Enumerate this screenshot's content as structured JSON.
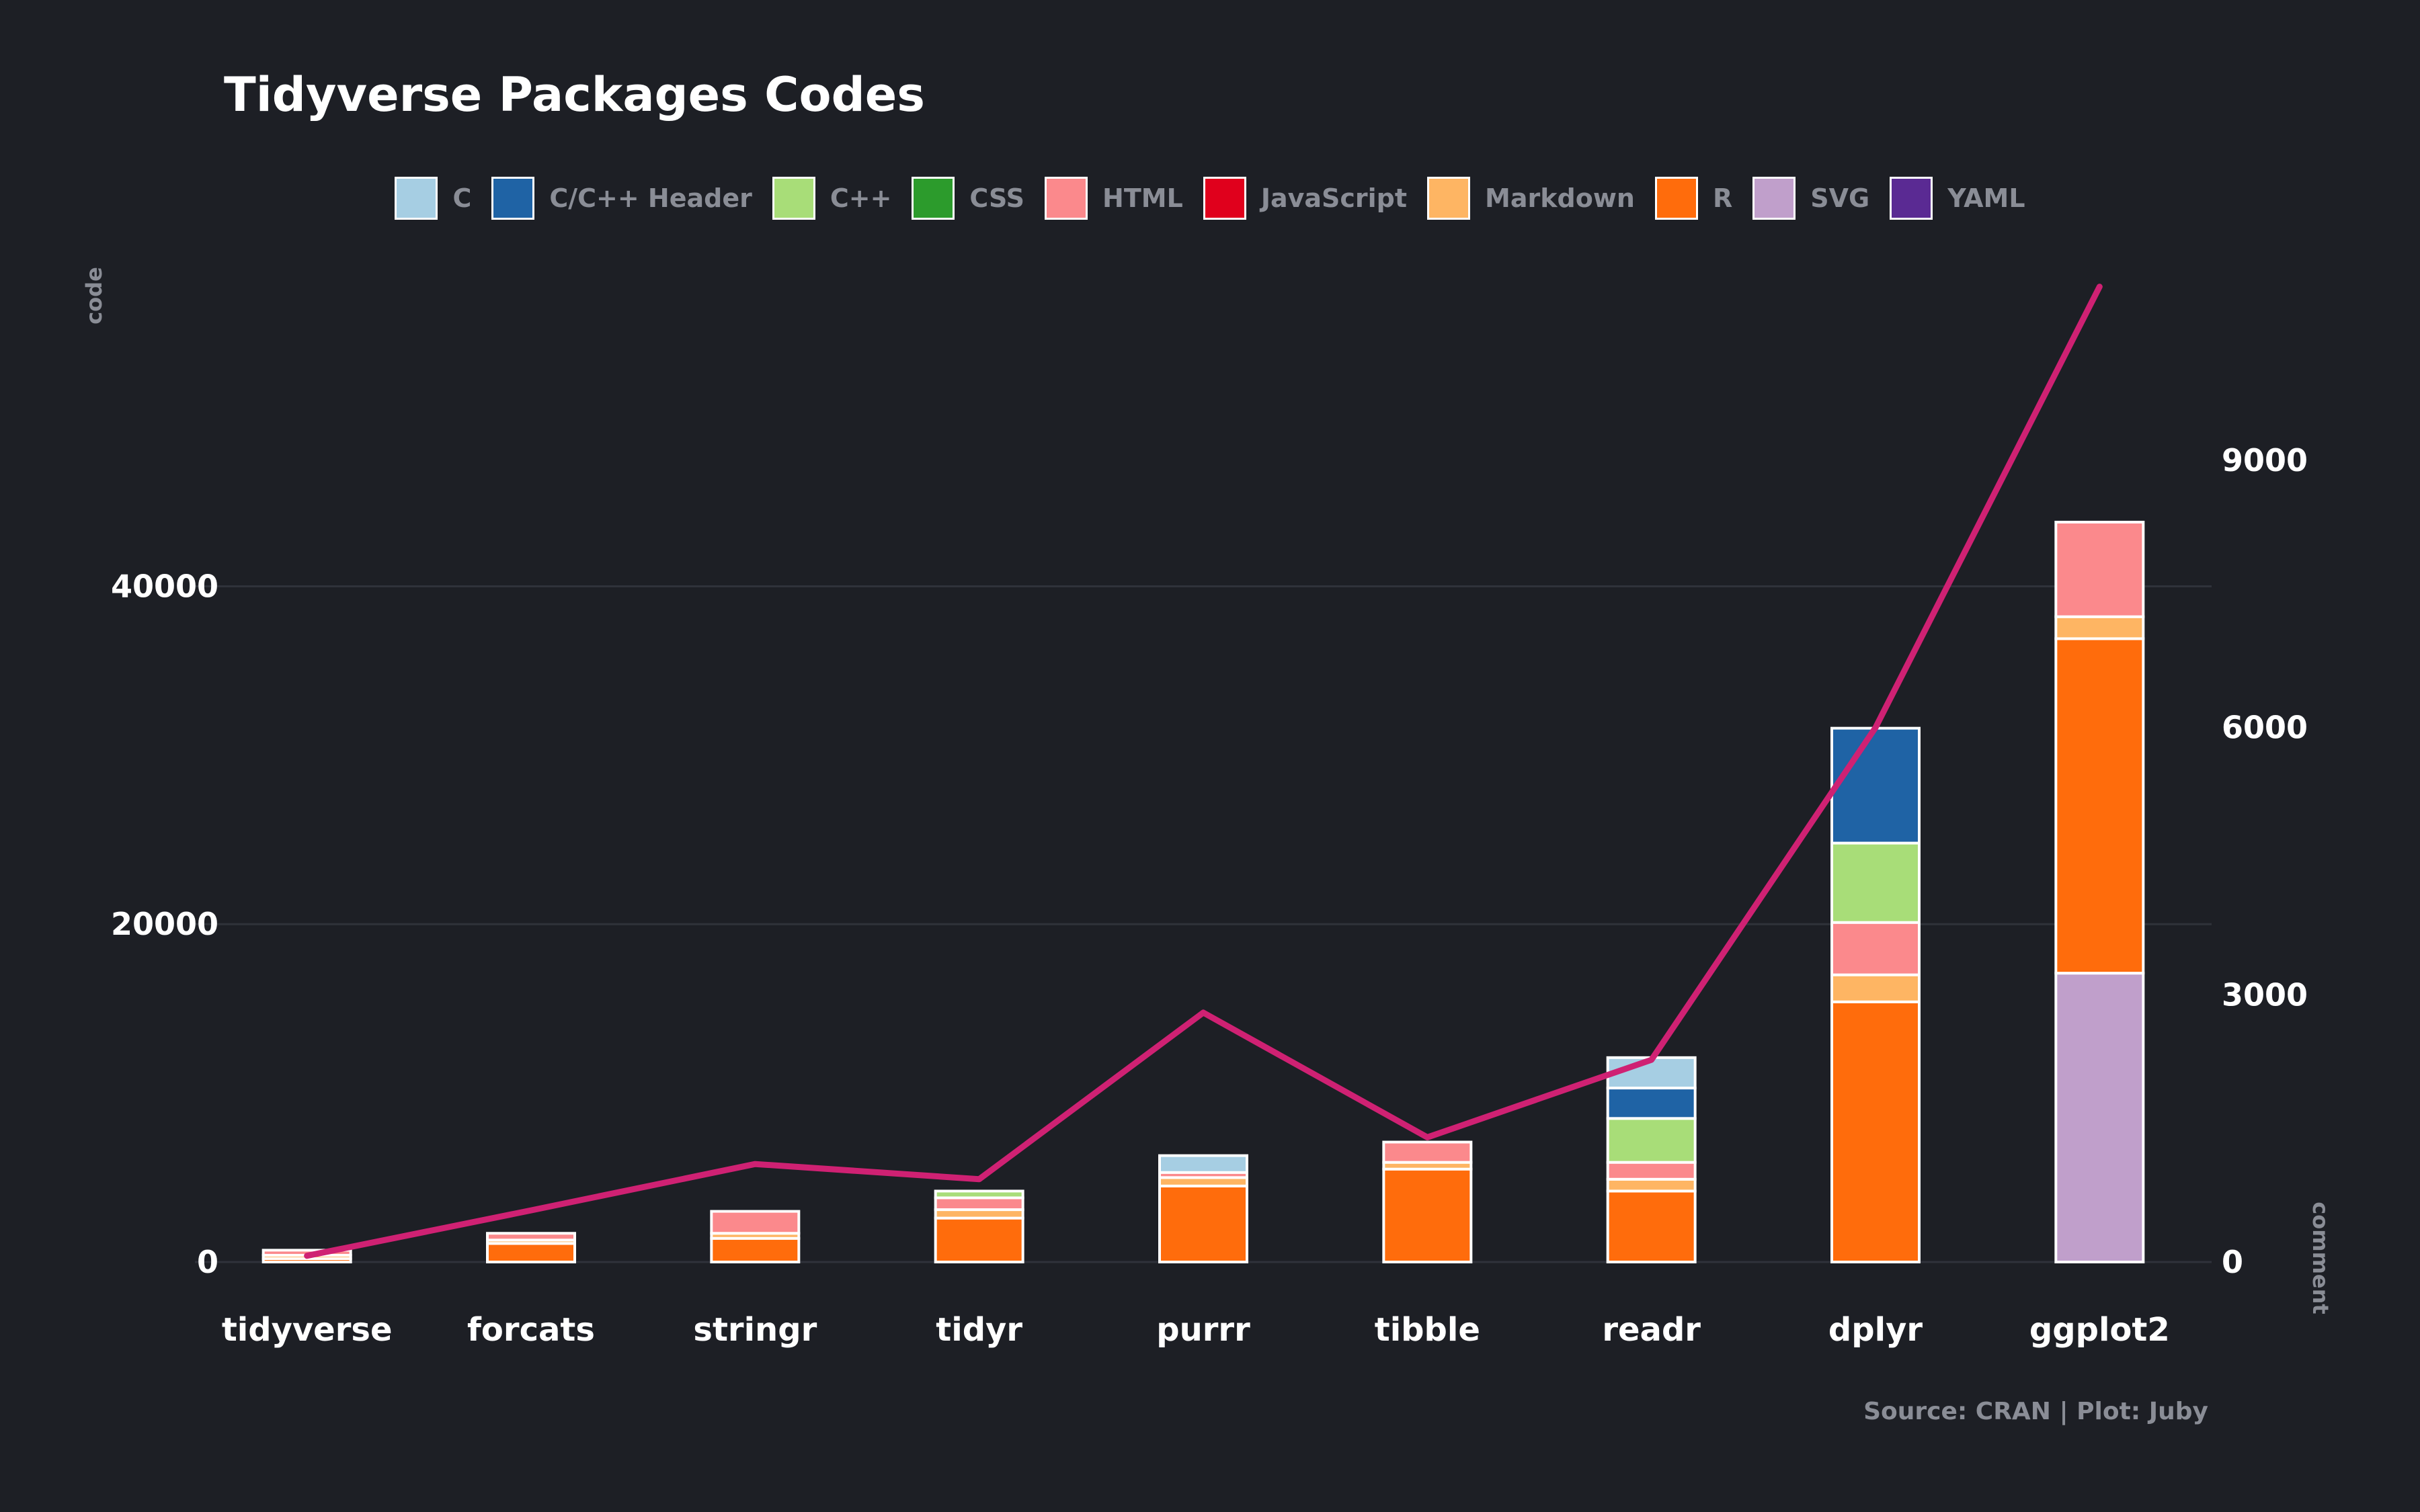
{
  "chart_data": {
    "type": "bar",
    "title": "Tidyverse Packages Codes",
    "ylabel": "code",
    "y2label": "comment",
    "caption": "Source: CRAN | Plot: Juby",
    "categories": [
      "tidyverse",
      "forcats",
      "stringr",
      "tidyr",
      "purrr",
      "tibble",
      "readr",
      "dplyr",
      "ggplot2"
    ],
    "ylim": [
      0,
      58000
    ],
    "y2lim": [
      0,
      11000
    ],
    "yticks": [
      0,
      20000,
      40000
    ],
    "y2ticks": [
      0,
      3000,
      6000,
      9000
    ],
    "ytick_labels": [
      "0",
      "20000",
      "40000"
    ],
    "y2tick_labels": [
      "0",
      "3000",
      "6000",
      "9000"
    ],
    "grid": true,
    "legend_position": "top",
    "series": [
      {
        "name": "C",
        "color": "#a6cee3",
        "values": [
          0,
          0,
          0,
          0,
          1000,
          0,
          1800,
          0,
          0
        ]
      },
      {
        "name": "C/C++ Header",
        "color": "#1f63a5",
        "values": [
          0,
          0,
          0,
          0,
          0,
          0,
          1800,
          6800,
          0
        ]
      },
      {
        "name": "C++",
        "color": "#a8dd78",
        "values": [
          0,
          0,
          0,
          400,
          0,
          0,
          2600,
          4700,
          0
        ]
      },
      {
        "name": "CSS",
        "color": "#2c9b2c",
        "values": [
          0,
          0,
          0,
          0,
          0,
          0,
          0,
          0,
          0
        ]
      },
      {
        "name": "HTML",
        "color": "#fb898c",
        "values": [
          300,
          400,
          1300,
          700,
          300,
          1200,
          1000,
          3100,
          5600
        ]
      },
      {
        "name": "JavaScript",
        "color": "#e0001c",
        "values": [
          0,
          0,
          0,
          0,
          0,
          0,
          0,
          0,
          0
        ]
      },
      {
        "name": "Markdown",
        "color": "#feb563",
        "values": [
          200,
          200,
          300,
          500,
          500,
          400,
          700,
          1600,
          1300
        ]
      },
      {
        "name": "R",
        "color": "#ff6c0c",
        "values": [
          200,
          1100,
          1400,
          2600,
          4500,
          5500,
          4200,
          15400,
          19800
        ]
      },
      {
        "name": "SVG",
        "color": "#c09fcb",
        "values": [
          0,
          0,
          0,
          0,
          0,
          0,
          0,
          0,
          17100
        ]
      },
      {
        "name": "YAML",
        "color": "#5a2a93",
        "values": [
          0,
          0,
          0,
          0,
          0,
          0,
          0,
          0,
          0
        ]
      }
    ],
    "line": {
      "axis": "right",
      "color": "#cf2173",
      "values": [
        70,
        580,
        1100,
        930,
        2800,
        1400,
        2270,
        6000,
        10950
      ]
    }
  }
}
